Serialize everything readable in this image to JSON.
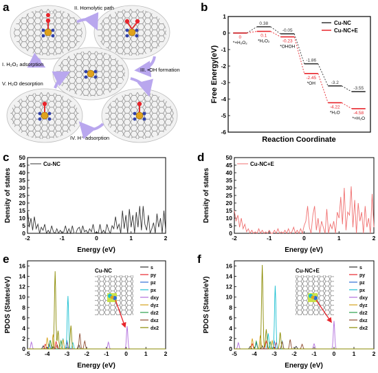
{
  "panels": {
    "a": "a",
    "b": "b",
    "c": "c",
    "d": "d",
    "e": "e",
    "f": "f"
  },
  "panel_a": {
    "steps": [
      "II. Homolytic path",
      "I. H₂O₂ adsorption",
      "III. •OH formation",
      "V. H₂O desorption",
      "IV. H⁺ adsorption"
    ]
  },
  "chart_data": [
    {
      "panel": "b",
      "type": "line",
      "xlabel": "Reaction Coordinate",
      "ylabel": "Free Energy(eV)",
      "ylim": [
        -6,
        1
      ],
      "yticks": [
        1,
        0,
        -1,
        -2,
        -3,
        -4,
        -5,
        -6
      ],
      "legend": "top-right",
      "states": [
        "*+H₂O₂",
        "*H₂O₂",
        "*OHOH",
        "*OH",
        "*H₂O",
        "*+H₂O"
      ],
      "series": [
        {
          "name": "Cu-NC",
          "color": "#333333",
          "values": [
            0,
            0.38,
            -0.05,
            -1.86,
            -3.2,
            -3.55
          ],
          "labels": [
            "",
            "0.38",
            "-0.05",
            "-1.86",
            "-3.2",
            "-3.55"
          ]
        },
        {
          "name": "Cu-NC+E",
          "color": "#e8242b",
          "values": [
            0,
            0.1,
            -0.23,
            -2.45,
            -4.22,
            -4.58
          ],
          "labels": [
            "0",
            "0.1",
            "-0.23",
            "-2.45",
            "-4.22",
            "-4.58"
          ]
        }
      ]
    },
    {
      "panel": "c",
      "type": "line",
      "xlabel": "Energy (eV)",
      "ylabel": "Density of states",
      "xlim": [
        -2,
        2
      ],
      "ylim": [
        0,
        50
      ],
      "xticks": [
        -2,
        -1,
        0,
        1,
        2
      ],
      "yticks": [
        0,
        5,
        10,
        15,
        20,
        25,
        30,
        35,
        40,
        45,
        50
      ],
      "legend": "top-left",
      "series": [
        {
          "name": "Cu-NC",
          "color": "#333333",
          "x": [
            -2,
            -1.95,
            -1.9,
            -1.85,
            -1.8,
            -1.75,
            -1.7,
            -1.65,
            -1.6,
            -1.55,
            -1.5,
            -1.45,
            -1.4,
            -1.35,
            -1.3,
            -1.25,
            -1.2,
            -1.15,
            -1.1,
            -1.05,
            -1,
            -0.95,
            -0.9,
            -0.85,
            -0.8,
            -0.75,
            -0.7,
            -0.65,
            -0.6,
            -0.55,
            -0.5,
            -0.45,
            -0.4,
            -0.35,
            -0.3,
            -0.25,
            -0.2,
            -0.15,
            -0.1,
            -0.05,
            0,
            0.05,
            0.1,
            0.15,
            0.2,
            0.25,
            0.3,
            0.35,
            0.4,
            0.45,
            0.5,
            0.55,
            0.6,
            0.65,
            0.7,
            0.75,
            0.8,
            0.85,
            0.9,
            0.95,
            1,
            1.05,
            1.1,
            1.15,
            1.2,
            1.25,
            1.3,
            1.35,
            1.4,
            1.45,
            1.5,
            1.55,
            1.6,
            1.65,
            1.7,
            1.75,
            1.8,
            1.85,
            1.9,
            1.95,
            2
          ],
          "y": [
            16,
            4,
            10,
            2,
            11,
            3,
            6,
            0,
            4,
            2,
            6,
            0,
            2,
            0,
            5,
            1,
            0,
            3,
            0,
            2,
            0,
            1,
            5,
            0,
            3,
            0,
            5,
            0,
            0,
            3,
            4,
            0,
            5,
            1,
            2,
            0,
            3,
            1,
            6,
            0,
            1,
            0,
            6,
            0,
            2,
            0,
            6,
            2,
            0,
            5,
            3,
            11,
            3,
            6,
            0,
            15,
            3,
            12,
            0,
            16,
            4,
            12,
            0,
            14,
            4,
            18,
            2,
            18,
            6,
            2,
            12,
            0,
            3,
            7,
            0,
            13,
            4,
            10,
            0,
            15,
            2
          ]
        }
      ]
    },
    {
      "panel": "d",
      "type": "line",
      "xlabel": "Energy (eV)",
      "ylabel": "Density of states",
      "xlim": [
        -2,
        2
      ],
      "ylim": [
        0,
        50
      ],
      "xticks": [
        -2,
        -1,
        0,
        1,
        2
      ],
      "yticks": [
        0,
        5,
        10,
        15,
        20,
        25,
        30,
        35,
        40,
        45,
        50
      ],
      "legend": "top-left",
      "series": [
        {
          "name": "Cu-NC+E",
          "color": "#f07070",
          "x": [
            -2,
            -1.95,
            -1.9,
            -1.85,
            -1.8,
            -1.75,
            -1.7,
            -1.65,
            -1.6,
            -1.55,
            -1.5,
            -1.45,
            -1.4,
            -1.35,
            -1.3,
            -1.25,
            -1.2,
            -1.15,
            -1.1,
            -1.05,
            -1,
            -0.95,
            -0.9,
            -0.85,
            -0.8,
            -0.75,
            -0.7,
            -0.65,
            -0.6,
            -0.55,
            -0.5,
            -0.45,
            -0.4,
            -0.35,
            -0.3,
            -0.25,
            -0.2,
            -0.15,
            -0.1,
            -0.05,
            0,
            0.05,
            0.1,
            0.15,
            0.2,
            0.25,
            0.3,
            0.35,
            0.4,
            0.45,
            0.5,
            0.55,
            0.6,
            0.65,
            0.7,
            0.75,
            0.8,
            0.85,
            0.9,
            0.95,
            1,
            1.05,
            1.1,
            1.15,
            1.2,
            1.25,
            1.3,
            1.35,
            1.4,
            1.45,
            1.5,
            1.55,
            1.6,
            1.65,
            1.7,
            1.75,
            1.8,
            1.85,
            1.9,
            1.95,
            2
          ],
          "y": [
            15,
            8,
            12,
            4,
            10,
            3,
            6,
            1,
            3,
            0,
            2,
            0,
            1,
            0,
            3,
            0,
            2,
            0,
            1,
            0,
            2,
            0,
            0,
            2,
            0,
            3,
            0,
            1,
            0,
            2,
            0,
            3,
            0,
            1,
            4,
            0,
            2,
            0,
            3,
            0,
            5,
            8,
            18,
            4,
            0,
            12,
            18,
            2,
            10,
            0,
            8,
            4,
            0,
            16,
            0,
            6,
            3,
            8,
            0,
            14,
            10,
            24,
            6,
            30,
            2,
            14,
            12,
            31,
            4,
            22,
            0,
            20,
            8,
            14,
            0,
            18,
            4,
            10,
            0,
            26,
            4
          ]
        }
      ]
    },
    {
      "panel": "e",
      "type": "line",
      "title": "Cu-NC",
      "xlabel": "Energy (eV)",
      "ylabel": "PDOS (States/eV)",
      "xlim": [
        -5,
        2
      ],
      "ylim": [
        0,
        17
      ],
      "xticks": [
        -5,
        -4,
        -3,
        -2,
        -1,
        0,
        1,
        2
      ],
      "yticks": [
        0,
        2,
        4,
        6,
        8,
        10,
        12,
        14,
        16
      ],
      "legend": "top-right",
      "series": [
        {
          "name": "s",
          "color": "#333333",
          "peaks": [
            [
              -4.2,
              0.6
            ],
            [
              -3.7,
              0.5
            ],
            [
              -2.4,
              0.8
            ]
          ]
        },
        {
          "name": "py",
          "color": "#e8242b",
          "peaks": [
            [
              -4.1,
              0.9
            ],
            [
              -3.55,
              1.4
            ],
            [
              -3.0,
              1.2
            ]
          ]
        },
        {
          "name": "pz",
          "color": "#2f6fd6",
          "peaks": [
            [
              -3.9,
              1.0
            ],
            [
              -3.0,
              1.6
            ]
          ]
        },
        {
          "name": "px",
          "color": "#19bfd1",
          "peaks": [
            [
              -3.2,
              2.0
            ],
            [
              -2.95,
              10.2
            ],
            [
              -2.7,
              1.2
            ]
          ]
        },
        {
          "name": "dxy",
          "color": "#b06ddc",
          "peaks": [
            [
              -4.8,
              1.3
            ],
            [
              -0.9,
              1.3
            ],
            [
              0.05,
              4.4
            ]
          ]
        },
        {
          "name": "dyz",
          "color": "#d6a21c",
          "peaks": [
            [
              -4.0,
              2.2
            ],
            [
              -3.7,
              2.8
            ],
            [
              -3.2,
              1.8
            ]
          ]
        },
        {
          "name": "dz2",
          "color": "#2c9e4b",
          "peaks": [
            [
              -3.85,
              1.7
            ],
            [
              -3.3,
              1.6
            ]
          ]
        },
        {
          "name": "dxz",
          "color": "#8c4a2f",
          "peaks": [
            [
              -3.5,
              0.8
            ],
            [
              -2.35,
              3.0
            ],
            [
              -2.1,
              1.5
            ]
          ]
        },
        {
          "name": "dx2",
          "color": "#8a8a00",
          "peaks": [
            [
              -3.6,
              15.0
            ],
            [
              -3.45,
              3.5
            ],
            [
              -2.8,
              4.5
            ]
          ]
        }
      ]
    },
    {
      "panel": "f",
      "type": "line",
      "title": "Cu-NC+E",
      "xlabel": "Energy (eV)",
      "ylabel": "PDOS (States/eV)",
      "xlim": [
        -5,
        2
      ],
      "ylim": [
        0,
        17
      ],
      "xticks": [
        -5,
        -4,
        -3,
        -2,
        -1,
        0,
        1,
        2
      ],
      "yticks": [
        0,
        2,
        4,
        6,
        8,
        10,
        12,
        14,
        16
      ],
      "legend": "top-right",
      "series": [
        {
          "name": "s",
          "color": "#333333",
          "peaks": [
            [
              -4.2,
              0.5
            ],
            [
              -3.6,
              0.6
            ],
            [
              -1.9,
              0.5
            ]
          ]
        },
        {
          "name": "py",
          "color": "#e8242b",
          "peaks": [
            [
              -4.1,
              1.0
            ],
            [
              -3.4,
              1.5
            ],
            [
              -2.9,
              1.2
            ]
          ]
        },
        {
          "name": "pz",
          "color": "#2f6fd6",
          "peaks": [
            [
              -3.9,
              1.1
            ],
            [
              -3.0,
              1.5
            ]
          ]
        },
        {
          "name": "px",
          "color": "#19bfd1",
          "peaks": [
            [
              -3.3,
              3.0
            ],
            [
              -2.95,
              12.2
            ],
            [
              -2.6,
              1.5
            ]
          ]
        },
        {
          "name": "dxy",
          "color": "#b06ddc",
          "peaks": [
            [
              -4.8,
              1.2
            ],
            [
              -1.0,
              1.0
            ],
            [
              0.0,
              5.4
            ]
          ]
        },
        {
          "name": "dyz",
          "color": "#d6a21c",
          "peaks": [
            [
              -4.1,
              2.0
            ],
            [
              -3.7,
              2.6
            ],
            [
              -3.1,
              1.6
            ]
          ]
        },
        {
          "name": "dz2",
          "color": "#2c9e4b",
          "peaks": [
            [
              -3.9,
              1.5
            ],
            [
              -3.2,
              1.4
            ]
          ]
        },
        {
          "name": "dxz",
          "color": "#8c4a2f",
          "peaks": [
            [
              -2.6,
              1.4
            ],
            [
              -2.2,
              1.8
            ],
            [
              -1.6,
              0.9
            ]
          ]
        },
        {
          "name": "dx2",
          "color": "#8a8a00",
          "peaks": [
            [
              -3.6,
              16.2
            ],
            [
              -3.4,
              3.8
            ],
            [
              -2.7,
              3.2
            ]
          ]
        }
      ]
    }
  ]
}
